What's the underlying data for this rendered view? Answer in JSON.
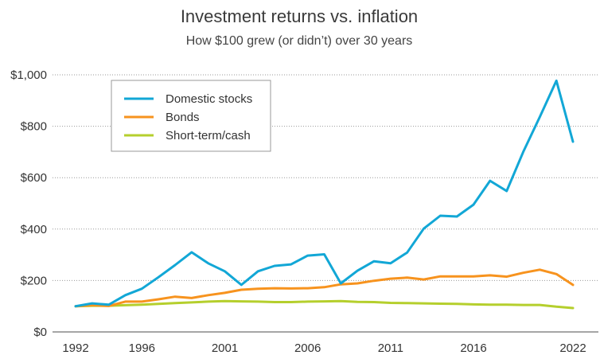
{
  "chart_data": {
    "type": "line",
    "title": "Investment returns vs. inflation",
    "subtitle": "How $100 grew (or didn’t) over 30 years",
    "xlabel": "",
    "ylabel": "",
    "xlim": [
      1992,
      2022
    ],
    "ylim": [
      0,
      1000
    ],
    "x_ticks": [
      1992,
      1996,
      2001,
      2006,
      2011,
      2016,
      2022
    ],
    "x_tick_labels": [
      "1992",
      "1996",
      "2001",
      "2006",
      "2011",
      "2016",
      "2022"
    ],
    "y_ticks": [
      0,
      200,
      400,
      600,
      800,
      1000
    ],
    "y_tick_labels": [
      "$0",
      "$200",
      "$400",
      "$600",
      "$800",
      "$1,000"
    ],
    "grid": "horizontal dotted",
    "legend_position": "top-left",
    "x": [
      1992,
      1993,
      1994,
      1995,
      1996,
      1997,
      1998,
      1999,
      2000,
      2001,
      2002,
      2003,
      2004,
      2005,
      2006,
      2007,
      2008,
      2009,
      2010,
      2011,
      2012,
      2013,
      2014,
      2015,
      2016,
      2017,
      2018,
      2019,
      2020,
      2021,
      2022
    ],
    "series": [
      {
        "name": "Domestic stocks",
        "color": "#12a7d6",
        "values": [
          100,
          111,
          106,
          143,
          168,
          213,
          260,
          310,
          267,
          236,
          183,
          236,
          257,
          263,
          297,
          302,
          189,
          238,
          275,
          267,
          309,
          402,
          452,
          449,
          495,
          588,
          548,
          700,
          836,
          977,
          740
        ]
      },
      {
        "name": "Bonds",
        "color": "#f7931e",
        "values": [
          100,
          104,
          101,
          118,
          118,
          127,
          137,
          132,
          143,
          152,
          164,
          168,
          170,
          169,
          170,
          174,
          185,
          189,
          199,
          207,
          211,
          204,
          216,
          216,
          216,
          220,
          215,
          230,
          242,
          225,
          183
        ]
      },
      {
        "name": "Short-term/cash",
        "color": "#b5cf2d",
        "values": [
          100,
          102,
          102,
          104,
          106,
          109,
          112,
          115,
          118,
          120,
          119,
          118,
          116,
          116,
          118,
          119,
          120,
          117,
          116,
          113,
          112,
          111,
          110,
          109,
          107,
          106,
          106,
          105,
          105,
          98,
          93
        ]
      }
    ]
  }
}
